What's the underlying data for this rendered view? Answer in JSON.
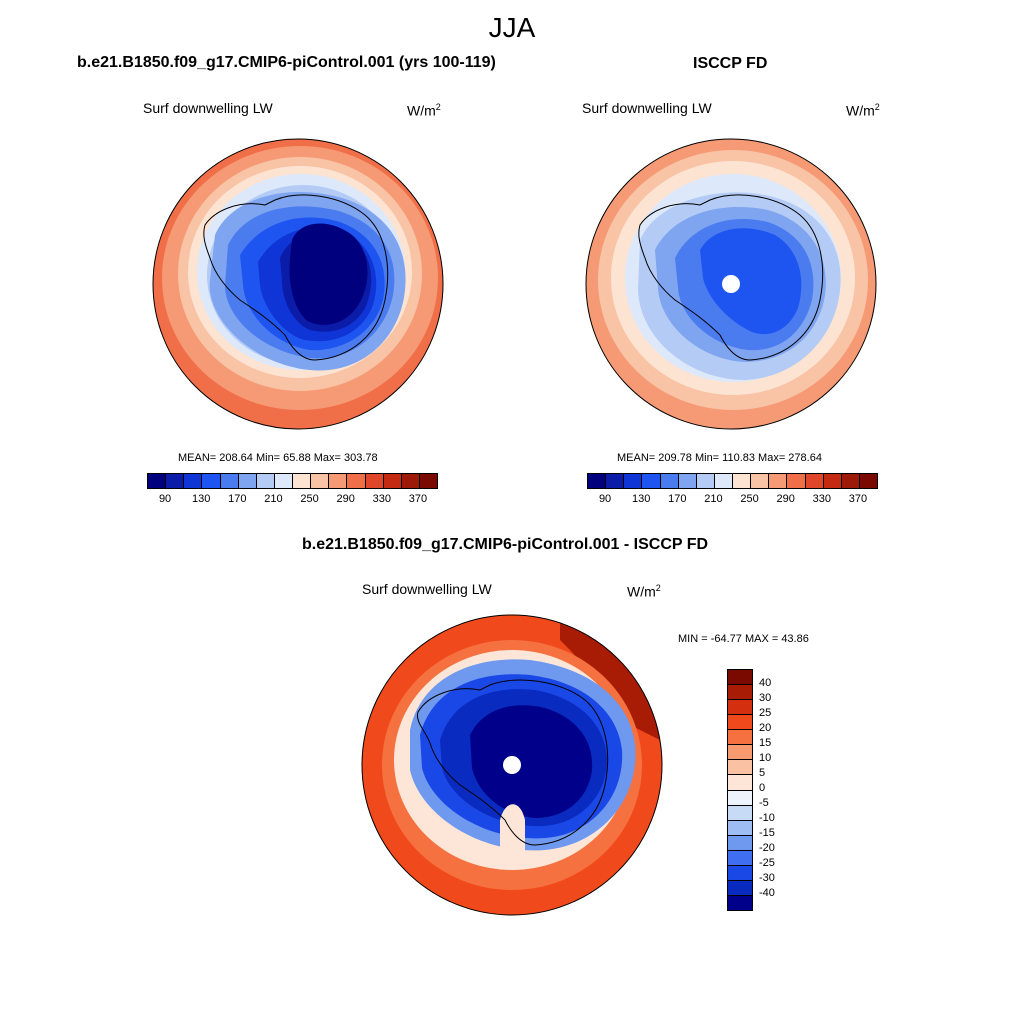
{
  "title": "JJA",
  "panels": [
    {
      "heading": "b.e21.B1850.f09_g17.CMIP6-piControl.001 (yrs 100-119)",
      "variable": "Surf downwelling LW",
      "units": "W/m",
      "units_exp": "2",
      "stats": "MEAN= 208.64  Min=  65.88  Max= 303.78"
    },
    {
      "heading": "ISCCP FD",
      "variable": "Surf downwelling LW",
      "units": "W/m",
      "units_exp": "2",
      "stats": "MEAN= 209.78  Min= 110.83  Max= 278.64"
    },
    {
      "heading": "b.e21.B1850.f09_g17.CMIP6-piControl.001 - ISCCP FD",
      "variable": "Surf downwelling LW",
      "units": "W/m",
      "units_exp": "2",
      "stats": "MIN = -64.77 MAX =  43.86"
    }
  ],
  "chart_data": [
    {
      "type": "heatmap",
      "projection": "south-polar-stereographic",
      "title": "Surf downwelling LW",
      "colorbar_levels": [
        90,
        110,
        130,
        150,
        170,
        190,
        210,
        230,
        250,
        270,
        290,
        310,
        330,
        350,
        370
      ],
      "colorbar_tick_labels": [
        "90",
        "130",
        "170",
        "210",
        "250",
        "290",
        "330",
        "370"
      ],
      "colors": [
        "#00007f",
        "#0a1ca8",
        "#0f35d6",
        "#1e55f0",
        "#4a7cf0",
        "#7fa4f0",
        "#b3cbf5",
        "#dde9fa",
        "#fde3d2",
        "#f9c3a5",
        "#f59a75",
        "#f06e48",
        "#e0462a",
        "#c42a12",
        "#9e1a08",
        "#7a0a00"
      ],
      "mean": 208.64,
      "min": 65.88,
      "max": 303.78
    },
    {
      "type": "heatmap",
      "projection": "south-polar-stereographic",
      "title": "Surf downwelling LW",
      "colorbar_levels": [
        90,
        110,
        130,
        150,
        170,
        190,
        210,
        230,
        250,
        270,
        290,
        310,
        330,
        350,
        370
      ],
      "colorbar_tick_labels": [
        "90",
        "130",
        "170",
        "210",
        "250",
        "290",
        "330",
        "370"
      ],
      "mean": 209.78,
      "min": 110.83,
      "max": 278.64
    },
    {
      "type": "heatmap",
      "projection": "south-polar-stereographic",
      "title": "Surf downwelling LW",
      "colorbar_levels": [
        -40,
        -30,
        -25,
        -20,
        -15,
        -10,
        -5,
        0,
        5,
        10,
        15,
        20,
        25,
        30,
        40
      ],
      "colorbar_tick_labels": [
        "40",
        "30",
        "25",
        "20",
        "15",
        "10",
        "5",
        "0",
        "-5",
        "-10",
        "-15",
        "-20",
        "-25",
        "-30",
        "-40"
      ],
      "colors_top_to_bottom": [
        "#7a0a00",
        "#a81c06",
        "#d43010",
        "#f04a1c",
        "#f5713f",
        "#f79a70",
        "#fac2a3",
        "#fde6d8",
        "#eef3fb",
        "#c8dbf6",
        "#9ebdf2",
        "#6f98ef",
        "#3f6ef0",
        "#1a48e6",
        "#0a2bc0",
        "#00008a"
      ],
      "min": -64.77,
      "max": 43.86
    }
  ]
}
